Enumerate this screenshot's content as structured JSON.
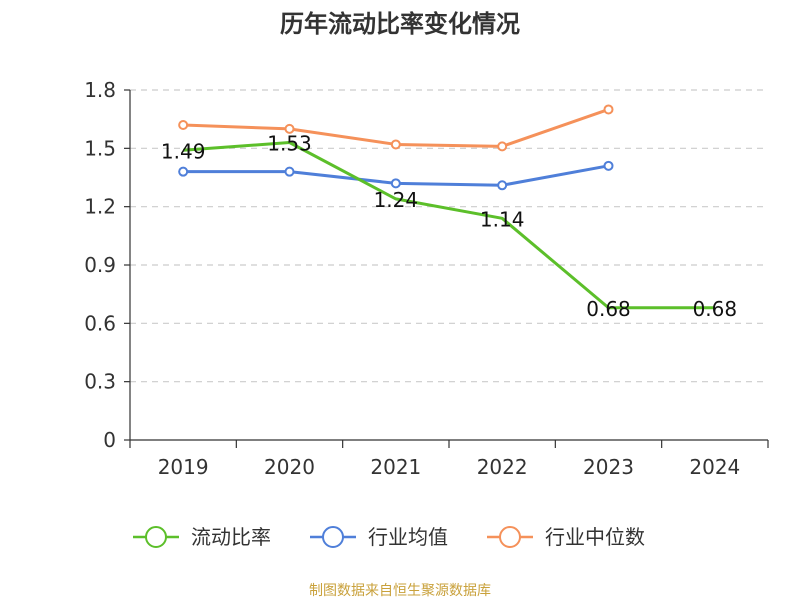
{
  "chart_data": {
    "type": "line",
    "title": "历年流动比率变化情况",
    "categories": [
      "2019",
      "2020",
      "2021",
      "2022",
      "2023",
      "2024"
    ],
    "ylim": [
      0,
      1.8
    ],
    "yticks": [
      "0",
      "0.3",
      "0.6",
      "0.9",
      "1.2",
      "1.5",
      "1.8"
    ],
    "ytick_values": [
      0,
      0.3,
      0.6,
      0.9,
      1.2,
      1.5,
      1.8
    ],
    "grid": true,
    "legend_position": "bottom",
    "series": [
      {
        "name": "流动比率",
        "color": "#5cbf2a",
        "values": [
          1.49,
          1.53,
          1.24,
          1.14,
          0.68,
          0.68
        ],
        "labels": [
          "1.49",
          "1.53",
          "1.24",
          "1.14",
          "0.68",
          "0.68"
        ],
        "show_labels": true
      },
      {
        "name": "行业均值",
        "color": "#4f7fd9",
        "values": [
          1.38,
          1.38,
          1.32,
          1.31,
          1.41,
          null
        ],
        "show_labels": false
      },
      {
        "name": "行业中位数",
        "color": "#f5915a",
        "values": [
          1.62,
          1.6,
          1.52,
          1.51,
          1.7,
          null
        ],
        "show_labels": false
      }
    ],
    "source": "制图数据来自恒生聚源数据库",
    "source_color": "#c9a13b"
  }
}
